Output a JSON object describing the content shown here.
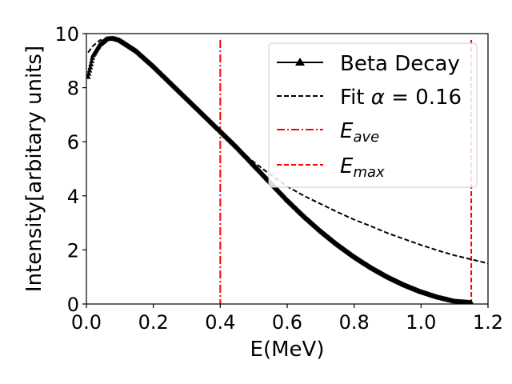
{
  "chart_data": {
    "type": "line",
    "xlabel": "E(MeV)",
    "ylabel": "Intensity[arbitary units]",
    "xlim": [
      0.0,
      1.2
    ],
    "ylim": [
      0,
      10
    ],
    "xticks": [
      "0.0",
      "0.2",
      "0.4",
      "0.6",
      "0.8",
      "1.0",
      "1.2"
    ],
    "xtick_values": [
      0.0,
      0.2,
      0.4,
      0.6,
      0.8,
      1.0,
      1.2
    ],
    "yticks": [
      "0",
      "2",
      "4",
      "6",
      "8",
      "10"
    ],
    "ytick_values": [
      0,
      2,
      4,
      6,
      8,
      10
    ],
    "legend_position": "top-right",
    "series": [
      {
        "name": "Beta Decay",
        "style": "solid-triangle-markers",
        "color": "#000000",
        "x": [
          0.005,
          0.02,
          0.04,
          0.06,
          0.08,
          0.1,
          0.15,
          0.2,
          0.25,
          0.3,
          0.35,
          0.4,
          0.45,
          0.5,
          0.55,
          0.6,
          0.65,
          0.7,
          0.75,
          0.8,
          0.85,
          0.9,
          0.95,
          1.0,
          1.05,
          1.1,
          1.15
        ],
        "y": [
          8.4,
          9.2,
          9.6,
          9.8,
          9.82,
          9.75,
          9.35,
          8.8,
          8.2,
          7.6,
          7.0,
          6.4,
          5.8,
          5.15,
          4.5,
          3.85,
          3.25,
          2.7,
          2.2,
          1.75,
          1.35,
          1.0,
          0.7,
          0.45,
          0.25,
          0.1,
          0.05
        ]
      },
      {
        "name": "Fit α = 0.16",
        "legend_prefix": "Fit ",
        "legend_symbol": "α",
        "legend_suffix": " = 0.16",
        "style": "dashed",
        "color": "#000000",
        "x": [
          0.005,
          0.02,
          0.04,
          0.06,
          0.08,
          0.1,
          0.15,
          0.2,
          0.25,
          0.3,
          0.35,
          0.4,
          0.45,
          0.5,
          0.55,
          0.6,
          0.65,
          0.7,
          0.75,
          0.8,
          0.85,
          0.9,
          0.95,
          1.0,
          1.05,
          1.1,
          1.15,
          1.2
        ],
        "y": [
          9.3,
          9.55,
          9.75,
          9.82,
          9.8,
          9.72,
          9.35,
          8.85,
          8.25,
          7.62,
          7.0,
          6.38,
          5.78,
          5.25,
          4.78,
          4.35,
          4.0,
          3.7,
          3.4,
          3.12,
          2.88,
          2.62,
          2.4,
          2.18,
          1.98,
          1.8,
          1.65,
          1.5
        ]
      },
      {
        "name": "E_ave",
        "legend_main": "E",
        "legend_sub": "ave",
        "style": "dashdot",
        "color": "#ff0000",
        "x_value": 0.4
      },
      {
        "name": "E_max",
        "legend_main": "E",
        "legend_sub": "max",
        "style": "dashed",
        "color": "#ff0000",
        "x_value": 1.15
      }
    ]
  }
}
